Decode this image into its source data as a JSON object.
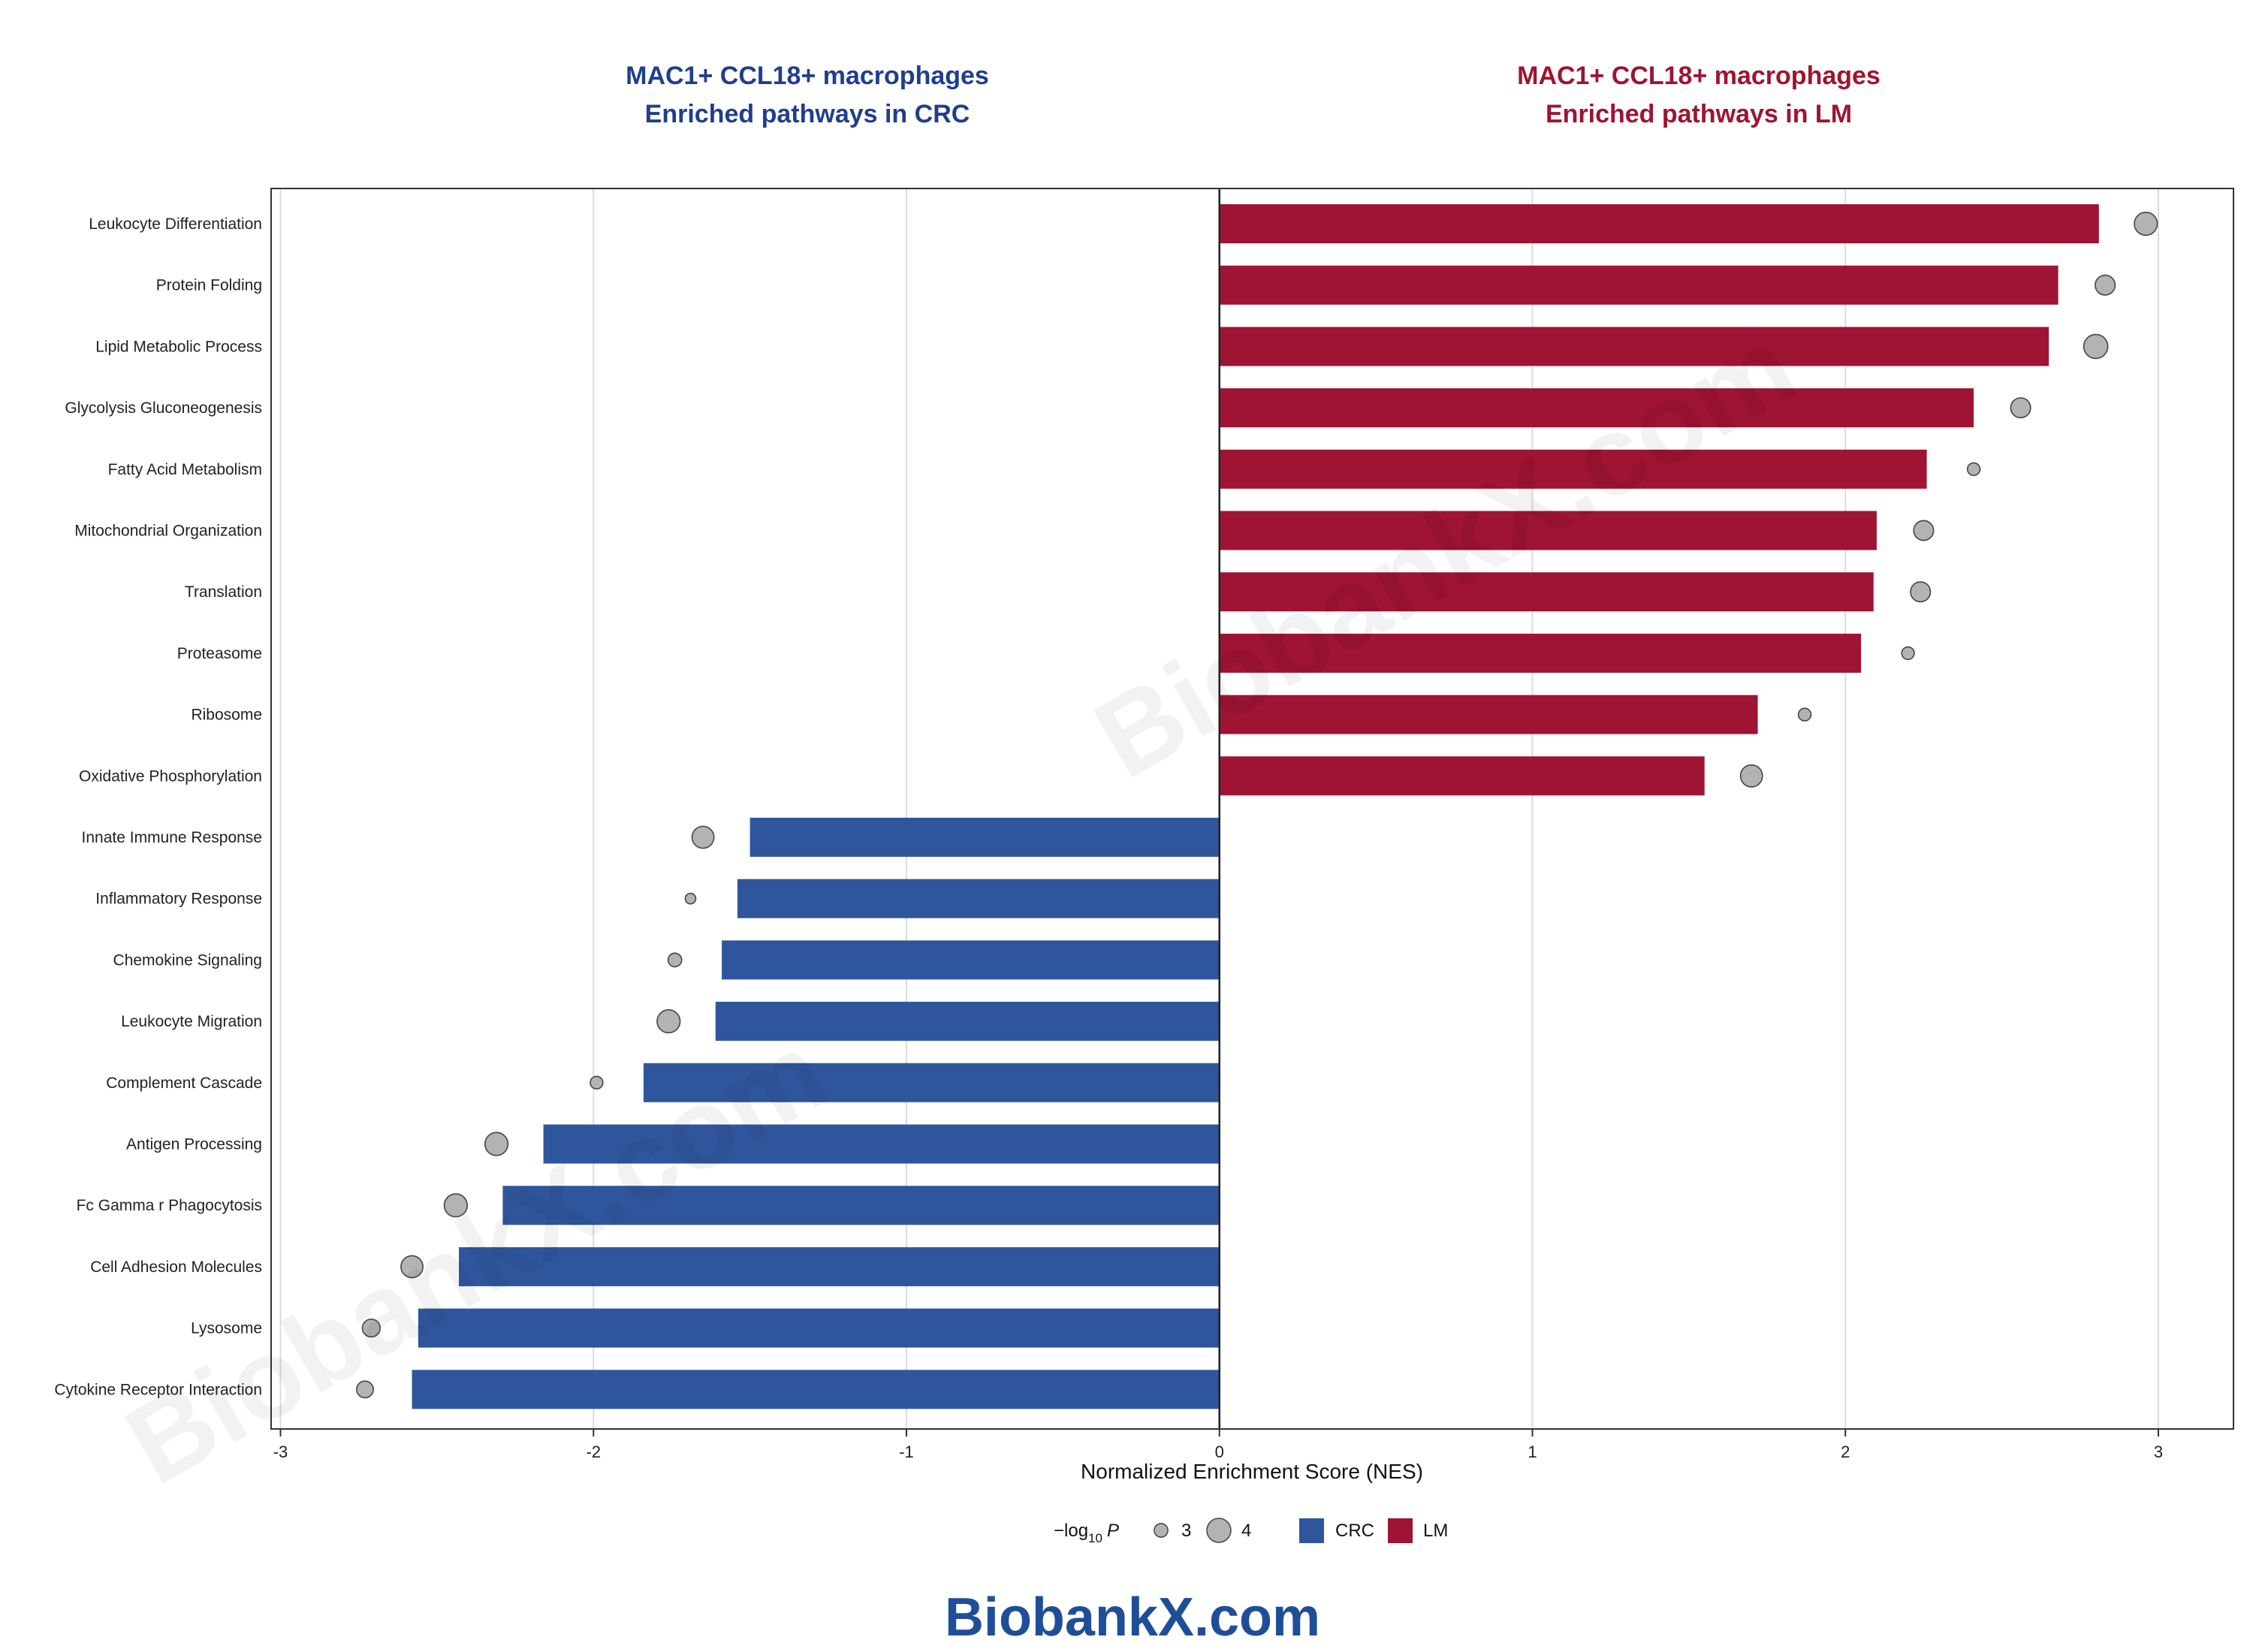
{
  "chart_data": {
    "type": "bar",
    "title_left_line1": "MAC1+ CCL18+ macrophages",
    "title_left_line2": "Enriched pathways in CRC",
    "title_right_line1": "MAC1+ CCL18+ macrophages",
    "title_right_line2": "Enriched pathways in LM",
    "xlabel": "Normalized Enrichment Score (NES)",
    "xlim": [
      -3,
      3
    ],
    "xticks": [
      -3,
      -2,
      -1,
      0,
      1,
      2,
      3
    ],
    "xtick_labels": [
      "-3",
      "-2",
      "-1",
      "0",
      "1",
      "2",
      "3"
    ],
    "grid": true,
    "colors": {
      "CRC": "#2f569c",
      "LM": "#9e1432",
      "point_fill": "#b3b3b3",
      "point_stroke": "#444444"
    },
    "legend": {
      "size_title_prefix": "−log",
      "size_title_sub": "10",
      "size_title_suffix": "P",
      "size_entries": [
        {
          "label": "3",
          "value": 3
        },
        {
          "label": "4",
          "value": 4
        }
      ],
      "color_entries": [
        {
          "label": "CRC",
          "group": "CRC"
        },
        {
          "label": "LM",
          "group": "LM"
        }
      ],
      "position": "bottom"
    },
    "categories": [
      "Leukocyte Differentiation",
      "Protein Folding",
      "Lipid Metabolic Process",
      "Glycolysis Gluconeogenesis",
      "Fatty Acid Metabolism",
      "Mitochondrial Organization",
      "Translation",
      "Proteasome",
      "Ribosome",
      "Oxidative Phosphorylation",
      "Innate Immune Response",
      "Inflammatory Response",
      "Chemokine Signaling",
      "Leukocyte Migration",
      "Complement Cascade",
      "Antigen Processing",
      "Fc Gamma r Phagocytosis",
      "Cell Adhesion Molecules",
      "Lysosome",
      "Cytokine Receptor Interaction"
    ],
    "groups": [
      "LM",
      "LM",
      "LM",
      "LM",
      "LM",
      "LM",
      "LM",
      "LM",
      "LM",
      "LM",
      "CRC",
      "CRC",
      "CRC",
      "CRC",
      "CRC",
      "CRC",
      "CRC",
      "CRC",
      "CRC",
      "CRC"
    ],
    "nes": [
      2.81,
      2.68,
      2.65,
      2.41,
      2.26,
      2.1,
      2.09,
      2.05,
      1.72,
      1.55,
      -1.5,
      -1.54,
      -1.59,
      -1.61,
      -1.84,
      -2.16,
      -2.29,
      -2.43,
      -2.56,
      -2.58
    ],
    "point_x": [
      2.96,
      2.83,
      2.8,
      2.56,
      2.41,
      2.25,
      2.24,
      2.2,
      1.87,
      1.7,
      -1.65,
      -1.69,
      -1.74,
      -1.76,
      -1.99,
      -2.31,
      -2.44,
      -2.58,
      -2.71,
      -2.73
    ],
    "neg_log10_p": [
      3.9,
      3.6,
      4.0,
      3.6,
      2.9,
      3.6,
      3.6,
      2.9,
      2.9,
      3.8,
      3.8,
      2.7,
      3.0,
      3.9,
      2.9,
      3.9,
      3.9,
      3.8,
      3.4,
      3.3
    ]
  },
  "watermark_text": "BiobankX.com",
  "footer_brand": "BiobankX.com"
}
